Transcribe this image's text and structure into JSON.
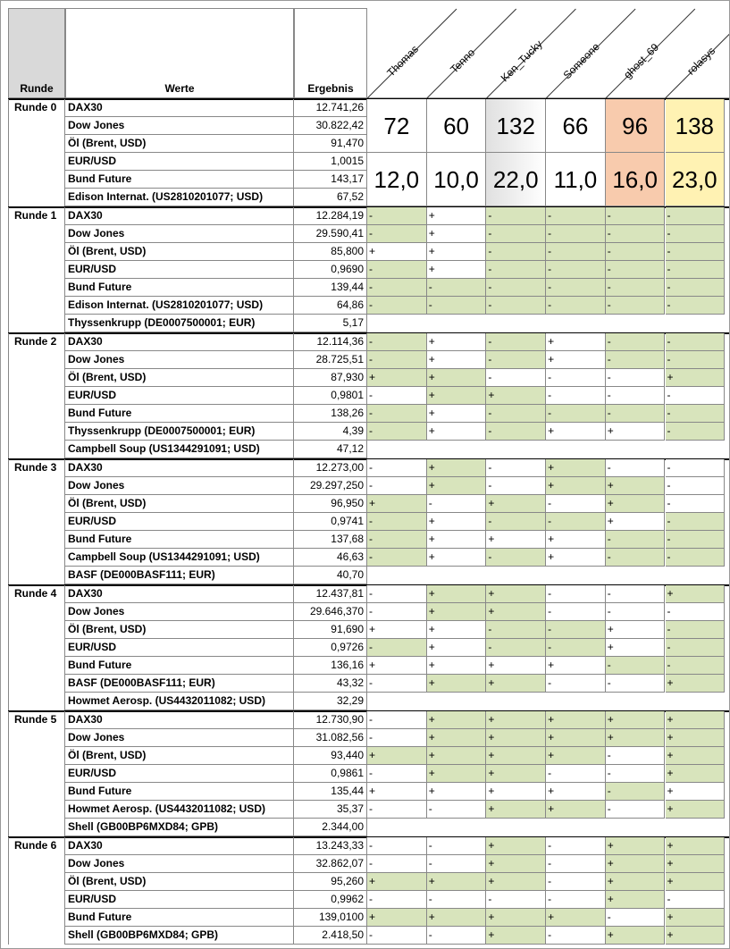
{
  "header": {
    "runde": "Runde",
    "werte": "Werte",
    "ergebnis": "Ergebnis",
    "players": [
      {
        "name": "Thomas"
      },
      {
        "name": "Tenno"
      },
      {
        "name": "Ken_Tucky",
        "color": "#f2f2f2"
      },
      {
        "name": "Someone"
      },
      {
        "name": "ghost_69",
        "color": "#f8cbad"
      },
      {
        "name": "rolasys",
        "color": "#fff2b3"
      }
    ]
  },
  "hit_color": "#d8e4bc",
  "rounds": [
    {
      "label": "Runde 0",
      "points": [
        72,
        60,
        132,
        66,
        96,
        138
      ],
      "second": [
        "12,0",
        "10,0",
        "22,0",
        "11,0",
        "16,0",
        "23,0"
      ],
      "rows": [
        {
          "werte": "DAX30",
          "ergebnis": "12.741,26"
        },
        {
          "werte": "Dow Jones",
          "ergebnis": "30.822,42"
        },
        {
          "werte": "Öl (Brent, USD)",
          "ergebnis": "91,470"
        },
        {
          "werte": "EUR/USD",
          "ergebnis": "1,0015"
        },
        {
          "werte": "Bund Future",
          "ergebnis": "143,17"
        },
        {
          "werte": "Edison Internat. (US2810201077; USD)",
          "ergebnis": "67,52"
        }
      ]
    },
    {
      "label": "Runde 1",
      "rows": [
        {
          "werte": "DAX30",
          "ergebnis": "12.284,19",
          "tips": [
            "-",
            "+",
            "-",
            "-",
            "-",
            "-"
          ]
        },
        {
          "werte": "Dow Jones",
          "ergebnis": "29.590,41",
          "tips": [
            "-",
            "+",
            "-",
            "-",
            "-",
            "-"
          ]
        },
        {
          "werte": "Öl (Brent, USD)",
          "ergebnis": "85,800",
          "tips": [
            "+",
            "+",
            "-",
            "-",
            "-",
            "-"
          ]
        },
        {
          "werte": "EUR/USD",
          "ergebnis": "0,9690",
          "tips": [
            "-",
            "+",
            "-",
            "-",
            "-",
            "-"
          ]
        },
        {
          "werte": "Bund Future",
          "ergebnis": "139,44",
          "tips": [
            "-",
            "-",
            "-",
            "-",
            "-",
            "-"
          ]
        },
        {
          "werte": "Edison Internat. (US2810201077; USD)",
          "ergebnis": "64,86",
          "tips": [
            "-",
            "-",
            "-",
            "-",
            "-",
            "-"
          ]
        },
        {
          "werte": "Thyssenkrupp (DE0007500001; EUR)",
          "ergebnis": "5,17"
        }
      ]
    },
    {
      "label": "Runde 2",
      "rows": [
        {
          "werte": "DAX30",
          "ergebnis": "12.114,36",
          "tips": [
            "-",
            "+",
            "-",
            "+",
            "-",
            "-"
          ]
        },
        {
          "werte": "Dow Jones",
          "ergebnis": "28.725,51",
          "tips": [
            "-",
            "+",
            "-",
            "+",
            "-",
            "-"
          ]
        },
        {
          "werte": "Öl (Brent, USD)",
          "ergebnis": "87,930",
          "tips": [
            "+",
            "+",
            "-",
            "-",
            "-",
            "+"
          ]
        },
        {
          "werte": "EUR/USD",
          "ergebnis": "0,9801",
          "tips": [
            "-",
            "+",
            "+",
            "-",
            "-",
            "-"
          ]
        },
        {
          "werte": "Bund Future",
          "ergebnis": "138,26",
          "tips": [
            "-",
            "+",
            "-",
            "-",
            "-",
            "-"
          ]
        },
        {
          "werte": "Thyssenkrupp (DE0007500001; EUR)",
          "ergebnis": "4,39",
          "tips": [
            "-",
            "+",
            "-",
            "+",
            "+",
            "-"
          ]
        },
        {
          "werte": "Campbell Soup (US1344291091; USD)",
          "ergebnis": "47,12"
        }
      ]
    },
    {
      "label": "Runde 3",
      "rows": [
        {
          "werte": "DAX30",
          "ergebnis": "12.273,00",
          "tips": [
            "-",
            "+",
            "-",
            "+",
            "-",
            "-"
          ]
        },
        {
          "werte": "Dow Jones",
          "ergebnis": "29.297,250",
          "tips": [
            "-",
            "+",
            "-",
            "+",
            "+",
            "-"
          ]
        },
        {
          "werte": "Öl (Brent, USD)",
          "ergebnis": "96,950",
          "tips": [
            "+",
            "-",
            "+",
            "-",
            "+",
            "-"
          ]
        },
        {
          "werte": "EUR/USD",
          "ergebnis": "0,9741",
          "tips": [
            "-",
            "+",
            "-",
            "-",
            "+",
            "-"
          ]
        },
        {
          "werte": "Bund Future",
          "ergebnis": "137,68",
          "tips": [
            "-",
            "+",
            "+",
            "+",
            "-",
            "-"
          ]
        },
        {
          "werte": "Campbell Soup (US1344291091; USD)",
          "ergebnis": "46,63",
          "tips": [
            "-",
            "+",
            "-",
            "+",
            "-",
            "-"
          ]
        },
        {
          "werte": "BASF (DE000BASF111; EUR)",
          "ergebnis": "40,70"
        }
      ]
    },
    {
      "label": "Runde 4",
      "rows": [
        {
          "werte": "DAX30",
          "ergebnis": "12.437,81",
          "tips": [
            "-",
            "+",
            "+",
            "-",
            "-",
            "+"
          ]
        },
        {
          "werte": "Dow Jones",
          "ergebnis": "29.646,370",
          "tips": [
            "-",
            "+",
            "+",
            "-",
            "-",
            "-"
          ]
        },
        {
          "werte": "Öl (Brent, USD)",
          "ergebnis": "91,690",
          "tips": [
            "+",
            "+",
            "-",
            "-",
            "+",
            "-"
          ]
        },
        {
          "werte": "EUR/USD",
          "ergebnis": "0,9726",
          "tips": [
            "-",
            "+",
            "-",
            "-",
            "+",
            "-"
          ]
        },
        {
          "werte": "Bund Future",
          "ergebnis": "136,16",
          "tips": [
            "+",
            "+",
            "+",
            "+",
            "-",
            "-"
          ]
        },
        {
          "werte": "BASF (DE000BASF111; EUR)",
          "ergebnis": "43,32",
          "tips": [
            "-",
            "+",
            "+",
            "-",
            "-",
            "+"
          ]
        },
        {
          "werte": "Howmet Aerosp. (US4432011082; USD)",
          "ergebnis": "32,29"
        }
      ]
    },
    {
      "label": "Runde 5",
      "rows": [
        {
          "werte": "DAX30",
          "ergebnis": "12.730,90",
          "tips": [
            "-",
            "+",
            "+",
            "+",
            "+",
            "+"
          ]
        },
        {
          "werte": "Dow Jones",
          "ergebnis": "31.082,56",
          "tips": [
            "-",
            "+",
            "+",
            "+",
            "+",
            "+"
          ]
        },
        {
          "werte": "Öl (Brent, USD)",
          "ergebnis": "93,440",
          "tips": [
            "+",
            "+",
            "+",
            "+",
            "-",
            "+"
          ]
        },
        {
          "werte": "EUR/USD",
          "ergebnis": "0,9861",
          "tips": [
            "-",
            "+",
            "+",
            "-",
            "-",
            "+"
          ]
        },
        {
          "werte": "Bund Future",
          "ergebnis": "135,44",
          "tips": [
            "+",
            "+",
            "+",
            "+",
            "-",
            "+"
          ]
        },
        {
          "werte": "Howmet Aerosp. (US4432011082; USD)",
          "ergebnis": "35,37",
          "tips": [
            "-",
            "-",
            "+",
            "+",
            "-",
            "+"
          ]
        },
        {
          "werte": "Shell (GB00BP6MXD84; GPB)",
          "ergebnis": "2.344,00"
        }
      ]
    },
    {
      "label": "Runde 6",
      "rows": [
        {
          "werte": "DAX30",
          "ergebnis": "13.243,33",
          "tips": [
            "-",
            "-",
            "+",
            "-",
            "+",
            "+"
          ]
        },
        {
          "werte": "Dow Jones",
          "ergebnis": "32.862,07",
          "tips": [
            "-",
            "-",
            "+",
            "-",
            "+",
            "+"
          ]
        },
        {
          "werte": "Öl (Brent, USD)",
          "ergebnis": "95,260",
          "tips": [
            "+",
            "+",
            "+",
            "-",
            "+",
            "+"
          ]
        },
        {
          "werte": "EUR/USD",
          "ergebnis": "0,9962",
          "tips": [
            "-",
            "-",
            "-",
            "-",
            "+",
            "-"
          ]
        },
        {
          "werte": "Bund Future",
          "ergebnis": "139,0100",
          "tips": [
            "+",
            "+",
            "+",
            "+",
            "-",
            "+"
          ]
        },
        {
          "werte": "Shell (GB00BP6MXD84; GPB)",
          "ergebnis": "2.418,50",
          "tips": [
            "-",
            "-",
            "+",
            "-",
            "+",
            "+"
          ]
        }
      ]
    }
  ]
}
